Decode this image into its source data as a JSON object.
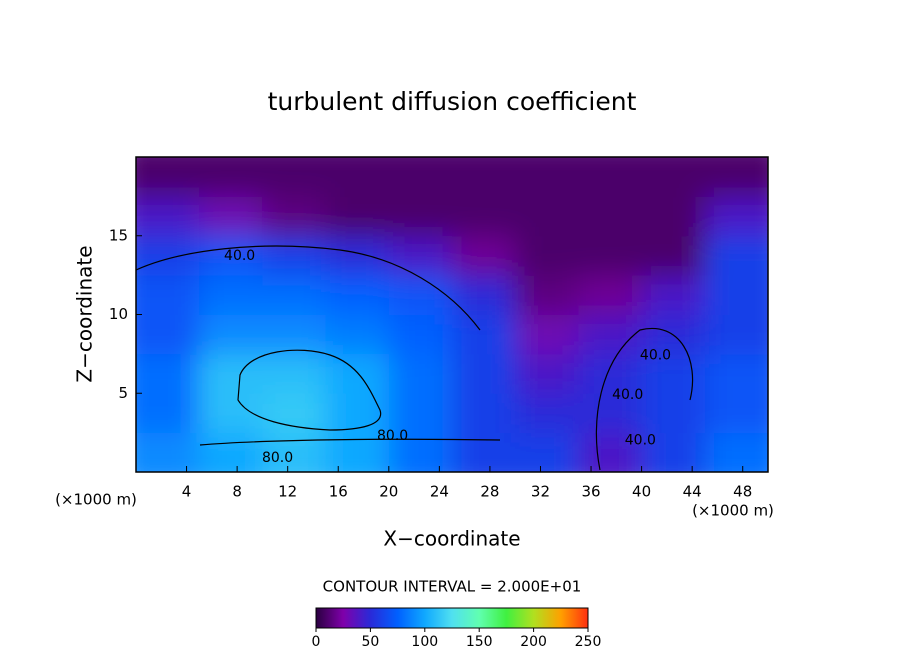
{
  "chart_data": {
    "type": "heatmap",
    "title": "turbulent diffusion coefficient",
    "x_label": "X−coordinate",
    "y_label": "Z−coordinate",
    "x_unit": "(×1000 m)",
    "y_unit": "(×1000 m)",
    "contour_note": "CONTOUR INTERVAL = 2.000E+01",
    "xlim": [
      0,
      50
    ],
    "ylim": [
      0,
      20
    ],
    "xticks": [
      4,
      8,
      12,
      16,
      20,
      24,
      28,
      32,
      36,
      40,
      44,
      48
    ],
    "yticks": [
      5,
      10,
      15
    ],
    "x": [
      0,
      5,
      10,
      15,
      20,
      25,
      30,
      35,
      40,
      45,
      50
    ],
    "z": [
      0,
      2.5,
      5,
      7.5,
      10,
      12.5,
      15,
      17.5,
      20
    ],
    "values": [
      [
        90,
        100,
        110,
        100,
        80,
        60,
        60,
        40,
        60,
        80
      ],
      [
        80,
        110,
        115,
        100,
        80,
        60,
        50,
        50,
        60,
        70
      ],
      [
        80,
        110,
        110,
        100,
        80,
        60,
        40,
        50,
        60,
        70
      ],
      [
        70,
        90,
        90,
        85,
        75,
        60,
        30,
        40,
        50,
        60
      ],
      [
        70,
        80,
        80,
        75,
        70,
        50,
        15,
        20,
        40,
        60
      ],
      [
        60,
        70,
        60,
        50,
        40,
        20,
        10,
        10,
        10,
        60
      ],
      [
        40,
        30,
        15,
        10,
        10,
        10,
        10,
        10,
        10,
        40
      ],
      [
        10,
        10,
        10,
        10,
        10,
        10,
        10,
        10,
        10,
        10
      ]
    ],
    "clim": [
      0,
      250
    ],
    "cticks": [
      0,
      50,
      100,
      150,
      200,
      250
    ],
    "colors": [
      "#2a0040",
      "#7f00aa",
      "#2a2ad8",
      "#0060ff",
      "#10a8ff",
      "#50e0f0",
      "#60ffb0",
      "#40f040",
      "#b0e020",
      "#ffa000",
      "#ff3010"
    ],
    "contour_labels": [
      {
        "text": "40.0",
        "x": 8.2,
        "y": 13.7
      },
      {
        "text": "80.0",
        "x": 20.3,
        "y": 2.3
      },
      {
        "text": "80.0",
        "x": 11.2,
        "y": 0.9
      },
      {
        "text": "40.0",
        "x": 41.1,
        "y": 7.4
      },
      {
        "text": "40.0",
        "x": 38.9,
        "y": 4.9
      },
      {
        "text": "40.0",
        "x": 39.9,
        "y": 2.0
      }
    ]
  }
}
